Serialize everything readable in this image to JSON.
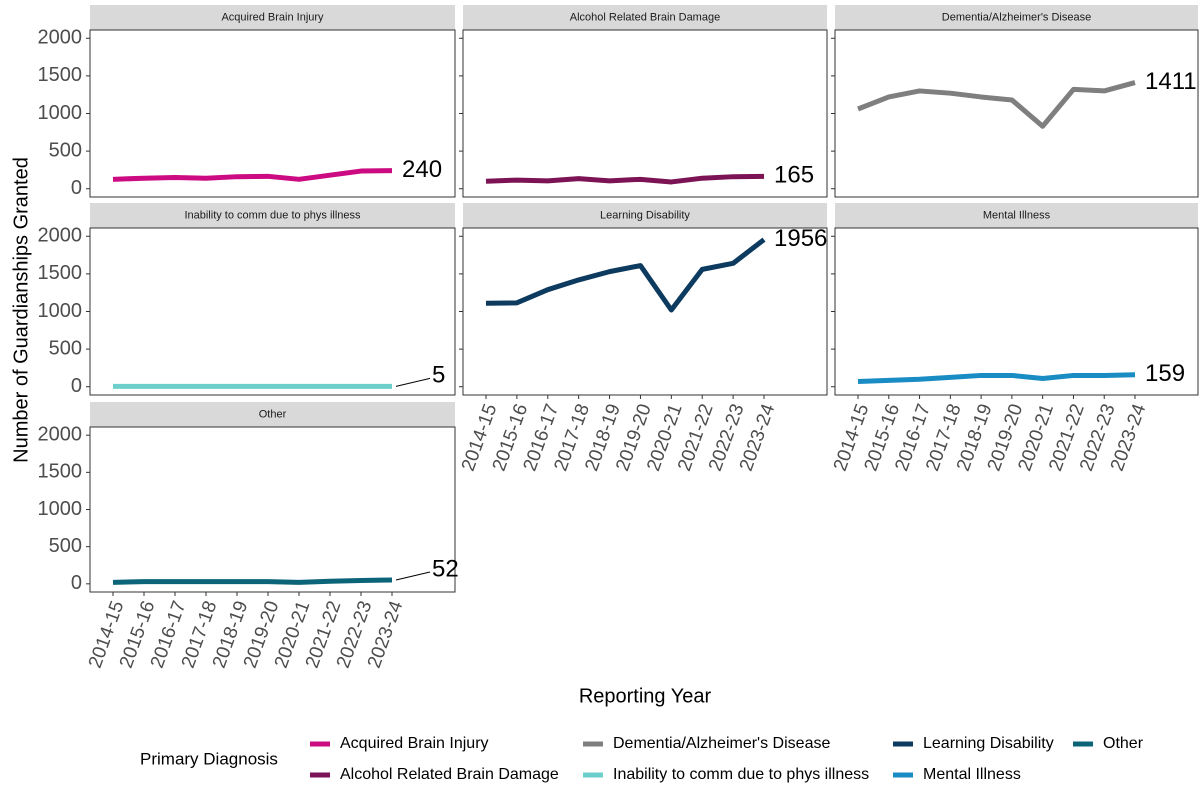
{
  "chart_data": [
    {
      "type": "line",
      "title": "Acquired Brain Injury",
      "categories": [
        "2014-15",
        "2015-16",
        "2016-17",
        "2017-18",
        "2018-19",
        "2019-20",
        "2020-21",
        "2021-22",
        "2022-23",
        "2023-24"
      ],
      "series": [
        {
          "name": "Acquired Brain Injury",
          "color": "#cc0a82",
          "values": [
            125,
            140,
            150,
            140,
            160,
            165,
            125,
            180,
            235,
            240
          ]
        }
      ],
      "ylim": [
        -110,
        2110
      ],
      "yticks": [
        0,
        500,
        1000,
        1500,
        2000
      ]
    },
    {
      "type": "line",
      "title": "Alcohol Related Brain Damage",
      "categories": [
        "2014-15",
        "2015-16",
        "2016-17",
        "2017-18",
        "2018-19",
        "2019-20",
        "2020-21",
        "2021-22",
        "2022-23",
        "2023-24"
      ],
      "series": [
        {
          "name": "Alcohol Related Brain Damage",
          "color": "#7b1355",
          "values": [
            100,
            115,
            105,
            135,
            105,
            125,
            90,
            140,
            160,
            165
          ]
        }
      ],
      "ylim": [
        -110,
        2110
      ],
      "yticks": [
        0,
        500,
        1000,
        1500,
        2000
      ]
    },
    {
      "type": "line",
      "title": "Dementia/Alzheimer's Disease",
      "categories": [
        "2014-15",
        "2015-16",
        "2016-17",
        "2017-18",
        "2018-19",
        "2019-20",
        "2020-21",
        "2021-22",
        "2022-23",
        "2023-24"
      ],
      "series": [
        {
          "name": "Dementia/Alzheimer's Disease",
          "color": "#7f7f7f",
          "values": [
            1060,
            1220,
            1300,
            1270,
            1220,
            1180,
            830,
            1320,
            1300,
            1411
          ]
        }
      ],
      "ylim": [
        -110,
        2110
      ],
      "yticks": [
        0,
        500,
        1000,
        1500,
        2000
      ]
    },
    {
      "type": "line",
      "title": "Inability to comm due to phys illness",
      "categories": [
        "2014-15",
        "2015-16",
        "2016-17",
        "2017-18",
        "2018-19",
        "2019-20",
        "2020-21",
        "2021-22",
        "2022-23",
        "2023-24"
      ],
      "series": [
        {
          "name": "Inability to comm due to phys illness",
          "color": "#6ccfcb",
          "values": [
            5,
            5,
            5,
            5,
            5,
            5,
            5,
            5,
            5,
            5
          ]
        }
      ],
      "ylim": [
        -110,
        2110
      ],
      "yticks": [
        0,
        500,
        1000,
        1500,
        2000
      ]
    },
    {
      "type": "line",
      "title": "Learning Disability",
      "categories": [
        "2014-15",
        "2015-16",
        "2016-17",
        "2017-18",
        "2018-19",
        "2019-20",
        "2020-21",
        "2021-22",
        "2022-23",
        "2023-24"
      ],
      "series": [
        {
          "name": "Learning Disability",
          "color": "#0d3a5f",
          "values": [
            1110,
            1115,
            1290,
            1420,
            1530,
            1610,
            1020,
            1560,
            1640,
            1956
          ]
        }
      ],
      "ylim": [
        -110,
        2110
      ],
      "yticks": [
        0,
        500,
        1000,
        1500,
        2000
      ]
    },
    {
      "type": "line",
      "title": "Mental Illness",
      "categories": [
        "2014-15",
        "2015-16",
        "2016-17",
        "2017-18",
        "2018-19",
        "2019-20",
        "2020-21",
        "2021-22",
        "2022-23",
        "2023-24"
      ],
      "series": [
        {
          "name": "Mental Illness",
          "color": "#1a8cc4",
          "values": [
            70,
            85,
            100,
            125,
            150,
            150,
            110,
            150,
            150,
            159
          ]
        }
      ],
      "ylim": [
        -110,
        2110
      ],
      "yticks": [
        0,
        500,
        1000,
        1500,
        2000
      ]
    },
    {
      "type": "line",
      "title": "Other",
      "categories": [
        "2014-15",
        "2015-16",
        "2016-17",
        "2017-18",
        "2018-19",
        "2019-20",
        "2020-21",
        "2021-22",
        "2022-23",
        "2023-24"
      ],
      "series": [
        {
          "name": "Other",
          "color": "#0b6478",
          "values": [
            20,
            30,
            30,
            30,
            30,
            30,
            20,
            35,
            45,
            52
          ]
        }
      ],
      "ylim": [
        -110,
        2110
      ],
      "yticks": [
        0,
        500,
        1000,
        1500,
        2000
      ]
    }
  ],
  "y_axis_label": "Number of Guardianships Granted",
  "x_axis_label": "Reporting Year",
  "legend_title": "Primary Diagnosis"
}
